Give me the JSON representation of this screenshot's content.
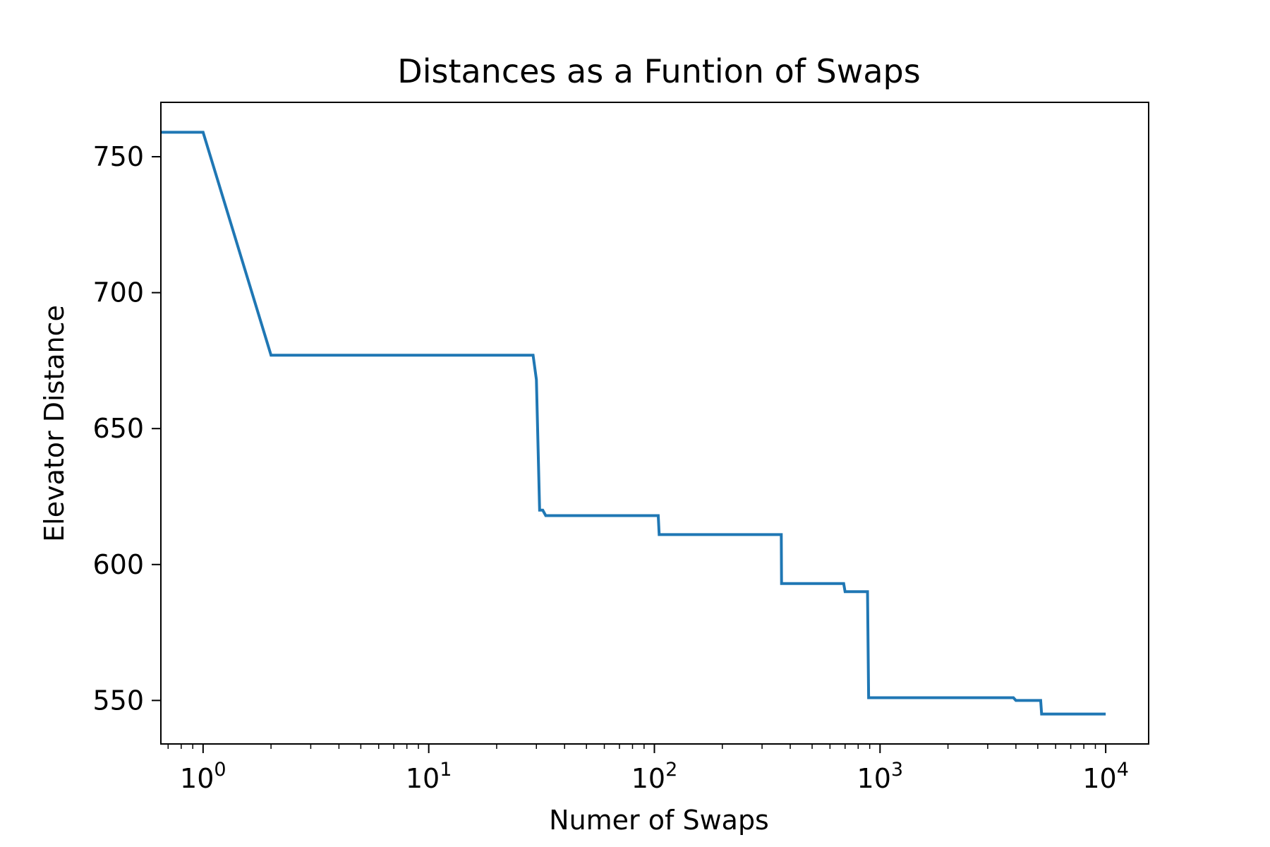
{
  "chart_data": {
    "type": "line",
    "title": "Distances as a Funtion of Swaps",
    "xlabel": "Numer of Swaps",
    "ylabel": "Elevator Distance",
    "xscale": "log",
    "xlim": [
      0.65,
      15500
    ],
    "ylim": [
      534,
      770
    ],
    "grid": false,
    "legend": "none",
    "x_ticks": [
      {
        "value": 1,
        "base": "10",
        "exp": "0"
      },
      {
        "value": 10,
        "base": "10",
        "exp": "1"
      },
      {
        "value": 100,
        "base": "10",
        "exp": "2"
      },
      {
        "value": 1000,
        "base": "10",
        "exp": "3"
      },
      {
        "value": 10000,
        "base": "10",
        "exp": "4"
      }
    ],
    "y_ticks": [
      {
        "value": 550,
        "label": "550"
      },
      {
        "value": 600,
        "label": "600"
      },
      {
        "value": 650,
        "label": "650"
      },
      {
        "value": 700,
        "label": "700"
      },
      {
        "value": 750,
        "label": "750"
      }
    ],
    "series": [
      {
        "color": "#1f77b4",
        "x": [
          0.65,
          1,
          2,
          29,
          30,
          31,
          32,
          33,
          104,
          105,
          365,
          366,
          690,
          700,
          880,
          890,
          3900,
          4000,
          5150,
          5200,
          10000
        ],
        "y": [
          759,
          759,
          677,
          677,
          668,
          620,
          620,
          618,
          618,
          611,
          611,
          593,
          593,
          590,
          590,
          551,
          551,
          550,
          550,
          545,
          545
        ]
      }
    ]
  }
}
